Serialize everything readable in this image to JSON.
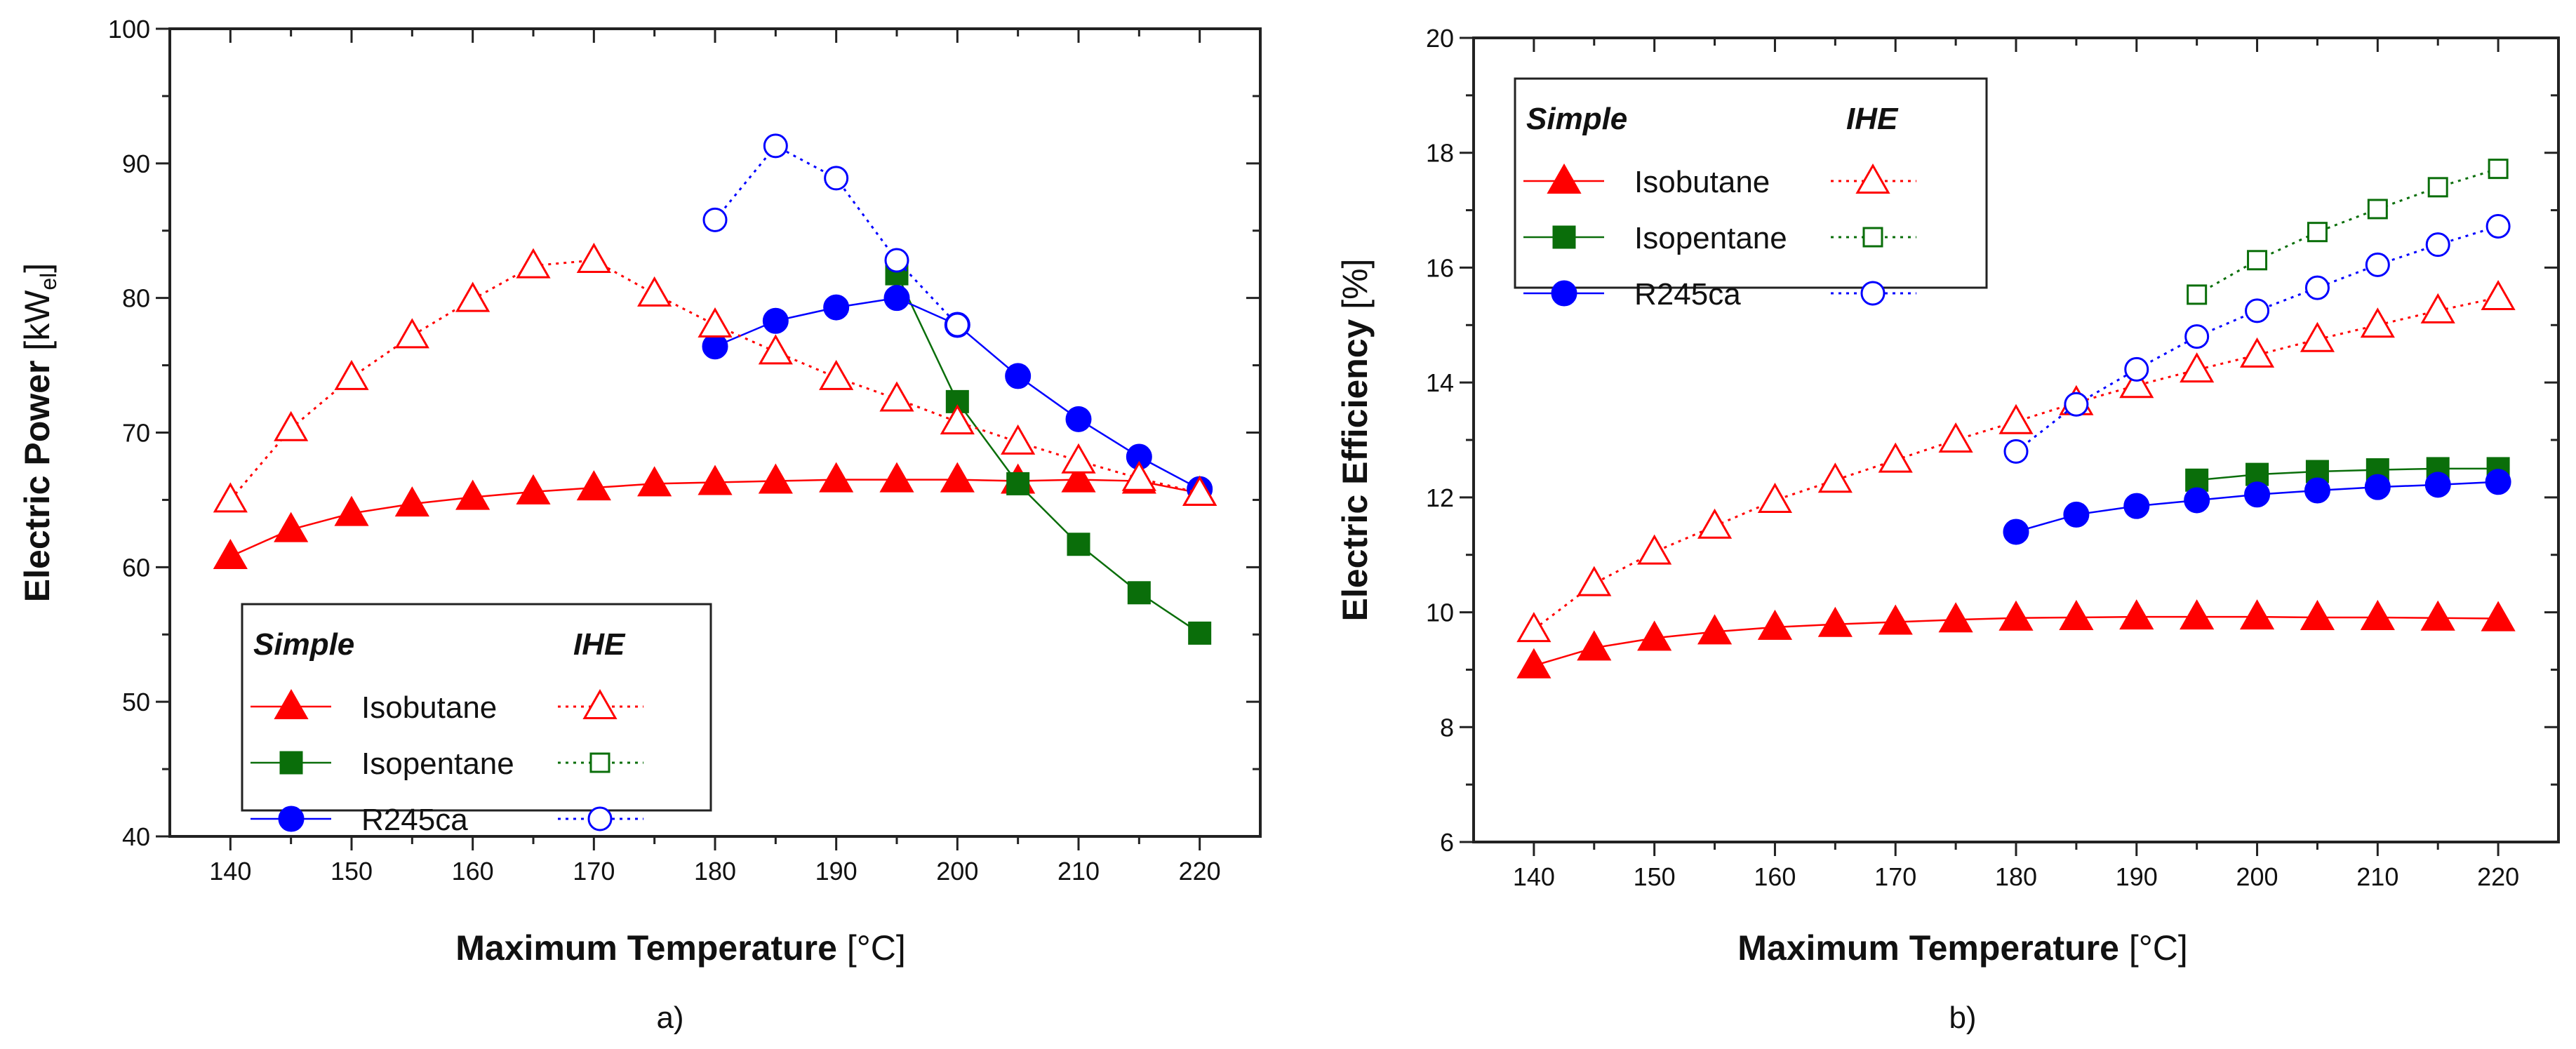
{
  "colors": {
    "isobutane": "#ff0000",
    "isopentane": "#0a6e0a",
    "r245ca": "#0000ff",
    "axis": "#222222"
  },
  "legend": {
    "simple_header": "Simple",
    "ihe_header": "IHE",
    "fluids": [
      "Isobutane",
      "Isopentane",
      "R245ca"
    ]
  },
  "chart_data": [
    {
      "type": "line",
      "panel_label": "a)",
      "xlabel_bold": "Maximum Temperature",
      "xlabel_unit": "[°C]",
      "ylabel_bold": "Electric Power",
      "ylabel_unit_pre": "[kW",
      "ylabel_unit_sub": "el",
      "ylabel_unit_post": "]",
      "xlim": [
        135,
        225
      ],
      "ylim": [
        40,
        100
      ],
      "xticks": [
        140,
        150,
        160,
        170,
        180,
        190,
        200,
        210,
        220
      ],
      "yticks": [
        40,
        50,
        60,
        70,
        80,
        90,
        100
      ],
      "legend_position": "bottom-left",
      "series": [
        {
          "name": "Isobutane",
          "config": "Simple",
          "x": [
            140,
            145,
            150,
            155,
            160,
            165,
            170,
            175,
            180,
            185,
            190,
            195,
            200,
            205,
            210,
            215,
            220
          ],
          "y": [
            60.8,
            62.8,
            64.0,
            64.7,
            65.2,
            65.6,
            65.9,
            66.2,
            66.3,
            66.4,
            66.5,
            66.5,
            66.5,
            66.4,
            66.5,
            66.4,
            65.5
          ]
        },
        {
          "name": "Isopentane",
          "config": "Simple",
          "x": [
            195,
            200,
            205,
            210,
            215,
            220
          ],
          "y": [
            81.8,
            72.3,
            66.2,
            61.7,
            58.1,
            55.1
          ]
        },
        {
          "name": "R245ca",
          "config": "Simple",
          "x": [
            180,
            185,
            190,
            195,
            200,
            205,
            210,
            215,
            220
          ],
          "y": [
            76.4,
            78.3,
            79.3,
            80.0,
            78.0,
            74.2,
            71.0,
            68.2,
            65.8
          ]
        },
        {
          "name": "Isobutane",
          "config": "IHE",
          "x": [
            140,
            145,
            150,
            155,
            160,
            165,
            170,
            175,
            180,
            185,
            190,
            195,
            200,
            205,
            210,
            215,
            220
          ],
          "y": [
            65.0,
            70.3,
            74.1,
            77.2,
            79.9,
            82.4,
            82.8,
            80.3,
            78.0,
            76.0,
            74.1,
            72.5,
            70.8,
            69.3,
            67.9,
            66.6,
            65.5
          ]
        },
        {
          "name": "R245ca",
          "config": "IHE",
          "x": [
            180,
            185,
            190,
            195,
            200
          ],
          "y": [
            85.8,
            91.3,
            88.9,
            82.8,
            78.0
          ]
        }
      ]
    },
    {
      "type": "line",
      "panel_label": "b)",
      "xlabel_bold": "Maximum Temperature",
      "xlabel_unit": "[°C]",
      "ylabel_bold": "Electric Efficiency",
      "ylabel_unit": "[%]",
      "xlim": [
        135,
        225
      ],
      "ylim": [
        6,
        20
      ],
      "xticks": [
        140,
        150,
        160,
        170,
        180,
        190,
        200,
        210,
        220
      ],
      "yticks": [
        6,
        8,
        10,
        12,
        14,
        16,
        18,
        20
      ],
      "legend_position": "top-left",
      "series": [
        {
          "name": "Isobutane",
          "config": "Simple",
          "x": [
            140,
            145,
            150,
            155,
            160,
            165,
            170,
            175,
            180,
            185,
            190,
            195,
            200,
            205,
            210,
            215,
            220
          ],
          "y": [
            9.07,
            9.38,
            9.55,
            9.66,
            9.74,
            9.79,
            9.83,
            9.87,
            9.9,
            9.91,
            9.92,
            9.92,
            9.92,
            9.91,
            9.91,
            9.9,
            9.89
          ]
        },
        {
          "name": "Isopentane",
          "config": "Simple",
          "x": [
            195,
            200,
            205,
            210,
            215,
            220
          ],
          "y": [
            12.3,
            12.4,
            12.45,
            12.48,
            12.5,
            12.5
          ]
        },
        {
          "name": "R245ca",
          "config": "Simple",
          "x": [
            180,
            185,
            190,
            195,
            200,
            205,
            210,
            215,
            220
          ],
          "y": [
            11.4,
            11.7,
            11.85,
            11.95,
            12.05,
            12.12,
            12.18,
            12.22,
            12.27
          ]
        },
        {
          "name": "Isobutane",
          "config": "IHE",
          "x": [
            140,
            145,
            150,
            155,
            160,
            165,
            170,
            175,
            180,
            185,
            190,
            195,
            200,
            205,
            210,
            215,
            220
          ],
          "y": [
            9.7,
            10.5,
            11.05,
            11.5,
            11.95,
            12.3,
            12.65,
            13.0,
            13.32,
            13.65,
            13.95,
            14.22,
            14.48,
            14.75,
            15.0,
            15.25,
            15.48
          ]
        },
        {
          "name": "Isopentane",
          "config": "IHE",
          "x": [
            195,
            200,
            205,
            210,
            215,
            220
          ],
          "y": [
            15.53,
            16.13,
            16.62,
            17.02,
            17.4,
            17.72
          ]
        },
        {
          "name": "R245ca",
          "config": "IHE",
          "x": [
            180,
            185,
            190,
            195,
            200,
            205,
            210,
            215,
            220
          ],
          "y": [
            12.8,
            13.62,
            14.23,
            14.8,
            15.25,
            15.65,
            16.05,
            16.4,
            16.72
          ]
        }
      ]
    }
  ]
}
